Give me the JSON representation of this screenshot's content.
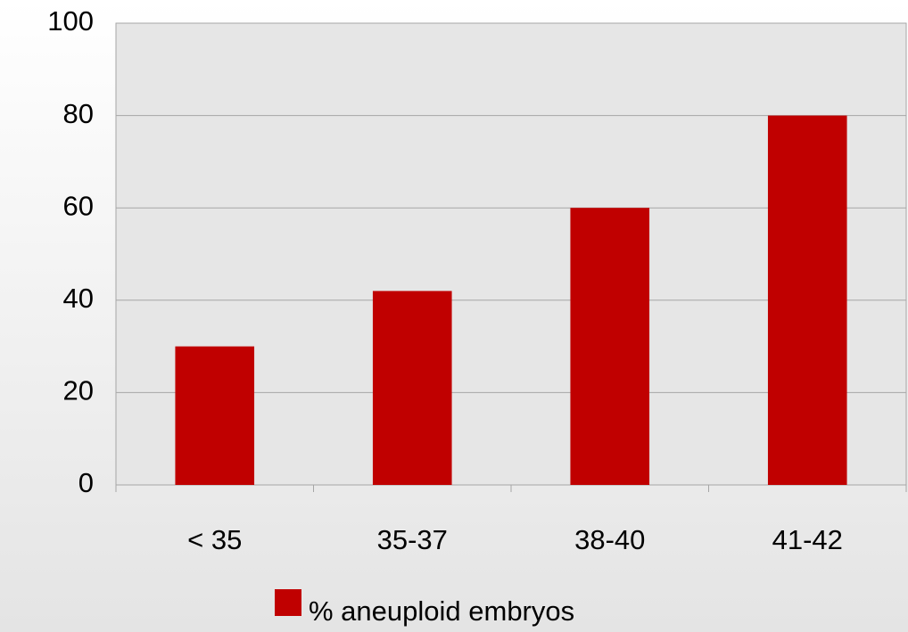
{
  "chart_data": {
    "type": "bar",
    "categories": [
      "< 35",
      "35-37",
      "38-40",
      "41-42"
    ],
    "series": [
      {
        "name": "% aneuploid embryos",
        "color": "#c00000",
        "values": [
          30,
          42,
          60,
          80
        ]
      }
    ],
    "ylim": [
      0,
      100
    ],
    "yticks": [
      0,
      20,
      40,
      60,
      80,
      100
    ],
    "grid": true,
    "legend": "bottom"
  }
}
